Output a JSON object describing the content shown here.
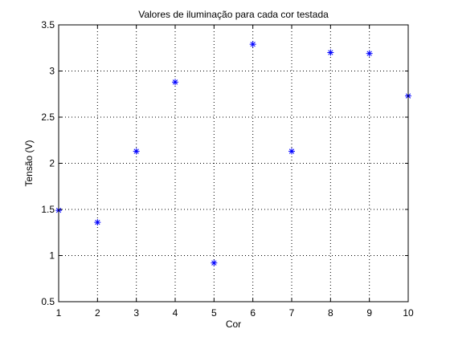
{
  "chart_data": {
    "type": "scatter",
    "title": "Valores de iluminação para cada cor testada",
    "xlabel": "Cor",
    "ylabel": "Tensão (V)",
    "xlim": [
      1,
      10
    ],
    "ylim": [
      0.5,
      3.5
    ],
    "xticks": [
      1,
      2,
      3,
      4,
      5,
      6,
      7,
      8,
      9,
      10
    ],
    "yticks": [
      0.5,
      1,
      1.5,
      2,
      2.5,
      3,
      3.5
    ],
    "xtick_labels": [
      "1",
      "2",
      "3",
      "4",
      "5",
      "6",
      "7",
      "8",
      "9",
      "10"
    ],
    "ytick_labels": [
      "0.5",
      "1",
      "1.5",
      "2",
      "2.5",
      "3",
      "3.5"
    ],
    "grid": true,
    "grid_style": "dotted",
    "marker": "asterisk",
    "marker_color": "#0000ff",
    "series": [
      {
        "x": [
          1,
          2,
          3,
          4,
          5,
          6,
          7,
          8,
          9,
          10
        ],
        "y": [
          1.49,
          1.36,
          2.13,
          2.88,
          0.92,
          3.29,
          2.13,
          3.2,
          3.19,
          2.73
        ]
      }
    ]
  }
}
